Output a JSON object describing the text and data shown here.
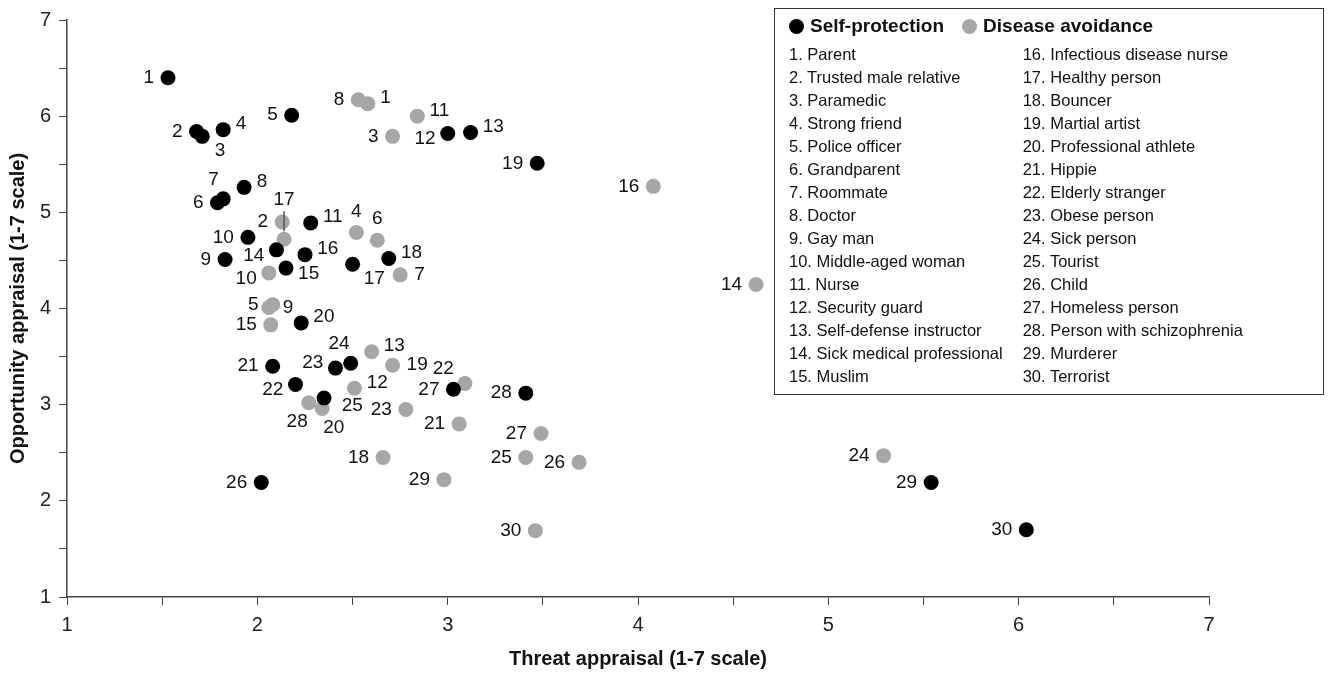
{
  "chart_data": {
    "type": "scatter",
    "xlabel": "Threat appraisal (1-7 scale)",
    "ylabel": "Opportunity appraisal (1-7 scale)",
    "xlim": [
      1,
      7
    ],
    "ylim": [
      1,
      7
    ],
    "xticks": [
      1,
      {
        "value": 1.5,
        "label": null
      },
      2,
      {
        "value": 2.5,
        "label": null
      },
      3,
      {
        "value": 3.5,
        "label": null
      },
      4,
      {
        "value": 4.5,
        "label": null
      },
      5,
      {
        "value": 5.5,
        "label": null
      },
      6,
      {
        "value": 6.5,
        "label": null
      },
      7
    ],
    "yticks": [
      1,
      {
        "value": 1.5,
        "label": null
      },
      2,
      {
        "value": 2.5,
        "label": null
      },
      3,
      {
        "value": 3.5,
        "label": null
      },
      4,
      {
        "value": 4.5,
        "label": null
      },
      5,
      {
        "value": 5.5,
        "label": null
      },
      6,
      {
        "value": 6.5,
        "label": null
      },
      7
    ],
    "grid": false,
    "legend": "top right",
    "marker": "circle",
    "series": [
      {
        "name": "Self-protection",
        "color": "#000000",
        "x": [
          1.53,
          1.68,
          1.71,
          1.82,
          2.18,
          1.79,
          1.82,
          1.93,
          1.83,
          1.95,
          2.28,
          3.0,
          3.12,
          2.1,
          2.15,
          2.25,
          2.5,
          2.69,
          3.47,
          2.23,
          2.08,
          2.2,
          2.41,
          2.49,
          2.35,
          2.02,
          3.03,
          3.41,
          5.54,
          6.04
        ],
        "values": [
          6.4,
          5.84,
          5.79,
          5.86,
          6.01,
          5.1,
          5.14,
          5.26,
          4.51,
          4.74,
          4.89,
          5.82,
          5.83,
          4.61,
          4.42,
          4.56,
          4.46,
          4.52,
          5.51,
          3.85,
          3.4,
          3.21,
          3.38,
          3.43,
          3.07,
          2.19,
          3.16,
          3.12,
          2.19,
          1.7
        ]
      },
      {
        "name": "Disease avoidance",
        "color": "#a6a6a6",
        "x": [
          2.58,
          2.13,
          2.71,
          2.52,
          2.08,
          2.63,
          2.75,
          2.53,
          2.06,
          2.06,
          2.84,
          2.51,
          2.6,
          4.62,
          2.07,
          4.08,
          2.14,
          2.66,
          2.71,
          2.34,
          3.06,
          3.09,
          2.78,
          5.29,
          3.41,
          3.69,
          3.49,
          2.27,
          2.98,
          3.46
        ],
        "values": [
          6.13,
          4.9,
          5.79,
          4.79,
          4.04,
          4.71,
          4.35,
          6.17,
          4.01,
          4.37,
          6.0,
          3.17,
          3.55,
          4.25,
          3.83,
          5.27,
          4.72,
          2.45,
          3.41,
          2.96,
          2.8,
          3.22,
          2.95,
          2.47,
          2.45,
          2.4,
          2.7,
          3.02,
          2.22,
          1.69
        ]
      }
    ],
    "annotations": [
      {
        "text": "1",
        "x": 1.53,
        "y": 6.4
      },
      {
        "text": "2",
        "x": 1.68,
        "y": 5.84
      },
      {
        "text": "3",
        "x": 1.71,
        "y": 5.79
      },
      {
        "text": "4",
        "x": 1.82,
        "y": 5.86
      },
      {
        "text": "5",
        "x": 2.18,
        "y": 6.01
      },
      {
        "text": "6",
        "x": 1.79,
        "y": 5.1
      },
      {
        "text": "7",
        "x": 1.82,
        "y": 5.14
      },
      {
        "text": "8",
        "x": 1.93,
        "y": 5.26
      },
      {
        "text": "9",
        "x": 1.83,
        "y": 4.51
      },
      {
        "text": "10",
        "x": 1.95,
        "y": 4.74
      },
      {
        "text": "11",
        "x": 2.28,
        "y": 4.89
      },
      {
        "text": "12",
        "x": 3.0,
        "y": 5.82
      },
      {
        "text": "13",
        "x": 3.12,
        "y": 5.83
      },
      {
        "text": "14",
        "x": 2.1,
        "y": 4.61
      },
      {
        "text": "15",
        "x": 2.15,
        "y": 4.42
      },
      {
        "text": "16",
        "x": 2.25,
        "y": 4.56
      },
      {
        "text": "17",
        "x": 2.5,
        "y": 4.46
      },
      {
        "text": "18",
        "x": 2.69,
        "y": 4.52
      },
      {
        "text": "19",
        "x": 3.47,
        "y": 5.51
      },
      {
        "text": "20",
        "x": 2.23,
        "y": 3.85
      },
      {
        "text": "21",
        "x": 2.08,
        "y": 3.4
      },
      {
        "text": "22",
        "x": 2.2,
        "y": 3.21
      },
      {
        "text": "23",
        "x": 2.41,
        "y": 3.38
      },
      {
        "text": "24",
        "x": 2.49,
        "y": 3.43
      },
      {
        "text": "25",
        "x": 2.35,
        "y": 3.07
      },
      {
        "text": "26",
        "x": 2.02,
        "y": 2.19
      },
      {
        "text": "27",
        "x": 3.03,
        "y": 3.16
      },
      {
        "text": "28",
        "x": 3.41,
        "y": 3.12
      },
      {
        "text": "29",
        "x": 5.54,
        "y": 2.19
      },
      {
        "text": "30",
        "x": 6.04,
        "y": 1.7
      },
      {
        "text": "1",
        "x": 2.58,
        "y": 6.13
      },
      {
        "text": "2",
        "x": 2.13,
        "y": 4.9
      },
      {
        "text": "3",
        "x": 2.71,
        "y": 5.79
      },
      {
        "text": "4",
        "x": 2.52,
        "y": 4.79
      },
      {
        "text": "5",
        "x": 2.08,
        "y": 4.04
      },
      {
        "text": "6",
        "x": 2.63,
        "y": 4.71
      },
      {
        "text": "7",
        "x": 2.75,
        "y": 4.35
      },
      {
        "text": "8",
        "x": 2.53,
        "y": 6.17
      },
      {
        "text": "9",
        "x": 2.06,
        "y": 4.01
      },
      {
        "text": "10",
        "x": 2.06,
        "y": 4.37
      },
      {
        "text": "11",
        "x": 2.84,
        "y": 6.0
      },
      {
        "text": "12",
        "x": 2.51,
        "y": 3.17
      },
      {
        "text": "13",
        "x": 2.6,
        "y": 3.55
      },
      {
        "text": "14",
        "x": 4.62,
        "y": 4.25
      },
      {
        "text": "15",
        "x": 2.07,
        "y": 3.83
      },
      {
        "text": "16",
        "x": 4.08,
        "y": 5.27
      },
      {
        "text": "17",
        "x": 2.14,
        "y": 4.72
      },
      {
        "text": "18",
        "x": 2.66,
        "y": 2.45
      },
      {
        "text": "19",
        "x": 2.71,
        "y": 3.41
      },
      {
        "text": "20",
        "x": 2.34,
        "y": 2.96
      },
      {
        "text": "21",
        "x": 3.06,
        "y": 2.8
      },
      {
        "text": "22",
        "x": 3.09,
        "y": 3.22
      },
      {
        "text": "23",
        "x": 2.78,
        "y": 2.95
      },
      {
        "text": "24",
        "x": 5.29,
        "y": 2.47
      },
      {
        "text": "25",
        "x": 3.41,
        "y": 2.45
      },
      {
        "text": "26",
        "x": 3.69,
        "y": 2.4
      },
      {
        "text": "27",
        "x": 3.49,
        "y": 2.7
      },
      {
        "text": "28",
        "x": 2.27,
        "y": 3.02
      },
      {
        "text": "29",
        "x": 2.98,
        "y": 2.22
      },
      {
        "text": "30",
        "x": 3.46,
        "y": 1.69
      },
      "1. Parent",
      "2. Trusted male relative",
      "3. Paramedic",
      "4. Strong friend",
      "5. Police officer",
      "6. Grandparent",
      "7. Roommate",
      "8. Doctor",
      "9. Gay man",
      "10. Middle-aged woman",
      "11. Nurse",
      "12. Security guard",
      "13. Self-defense instructor",
      "14. Sick medical professional",
      "15. Muslim",
      "16. Infectious disease nurse",
      "17. Healthy person",
      "18. Bouncer",
      "19. Martial artist",
      "20. Professional athlete",
      "21. Hippie",
      "22. Elderly stranger",
      "23. Obese person",
      "24. Sick person",
      "25. Tourist",
      "26. Child",
      "27. Homeless person",
      "28. Person with schizophrenia",
      "29. Murderer",
      "30. Terrorist"
    ]
  }
}
